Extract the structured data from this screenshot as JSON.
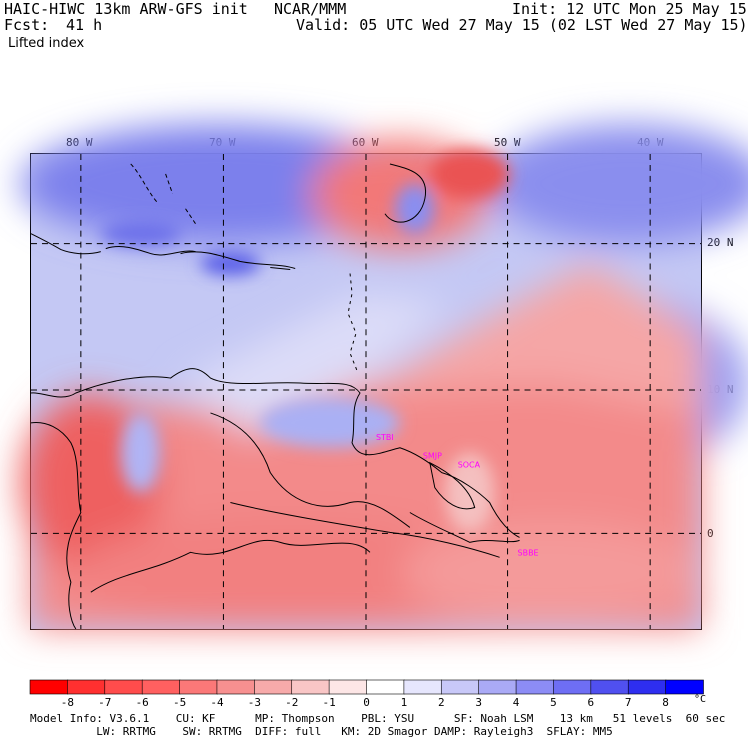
{
  "header": {
    "model": "HAIC-HIWC 13km ARW-GFS init",
    "org": "NCAR/MMM",
    "init": "Init: 12 UTC Mon 25 May 15",
    "fcst_label": "Fcst:",
    "fcst_value": "41 h",
    "valid": "Valid: 05 UTC Wed 27 May 15 (02 LST Wed 27 May 15)",
    "field": "Lifted index"
  },
  "axes": {
    "lon_labels": [
      "80 W",
      "70 W",
      "60 W",
      "50 W",
      "40 W"
    ],
    "lat_labels": [
      "20 N",
      "10 N",
      "0"
    ]
  },
  "stations": [
    "STBI",
    "SMJP",
    "SOCA",
    "SBBE"
  ],
  "colorbar": {
    "unit": "°C",
    "labels": [
      "-8",
      "-7",
      "-6",
      "-5",
      "-4",
      "-3",
      "-2",
      "-1",
      "0",
      "1",
      "2",
      "3",
      "4",
      "5",
      "6",
      "7",
      "8"
    ],
    "colors": [
      "#ff0000",
      "#ff3030",
      "#ff4c4c",
      "#ff6060",
      "#fb7878",
      "#f79090",
      "#f7aaaa",
      "#f9c6c6",
      "#fde6e6",
      "#ffffff",
      "#e6e6fd",
      "#c8c8f8",
      "#aaaaf6",
      "#8c8cf5",
      "#6e6ef4",
      "#5050f0",
      "#2e2ef0",
      "#0000ff"
    ]
  },
  "footer": {
    "line1": "Model Info: V3.6.1    CU: KF      MP: Thompson    PBL: YSU      SF: Noah LSM    13 km   51 levels  60 sec",
    "line2": "          LW: RRTMG    SW: RRTMG  DIFF: full   KM: 2D Smagor DAMP: Rayleigh3  SFLAY: MM5"
  }
}
